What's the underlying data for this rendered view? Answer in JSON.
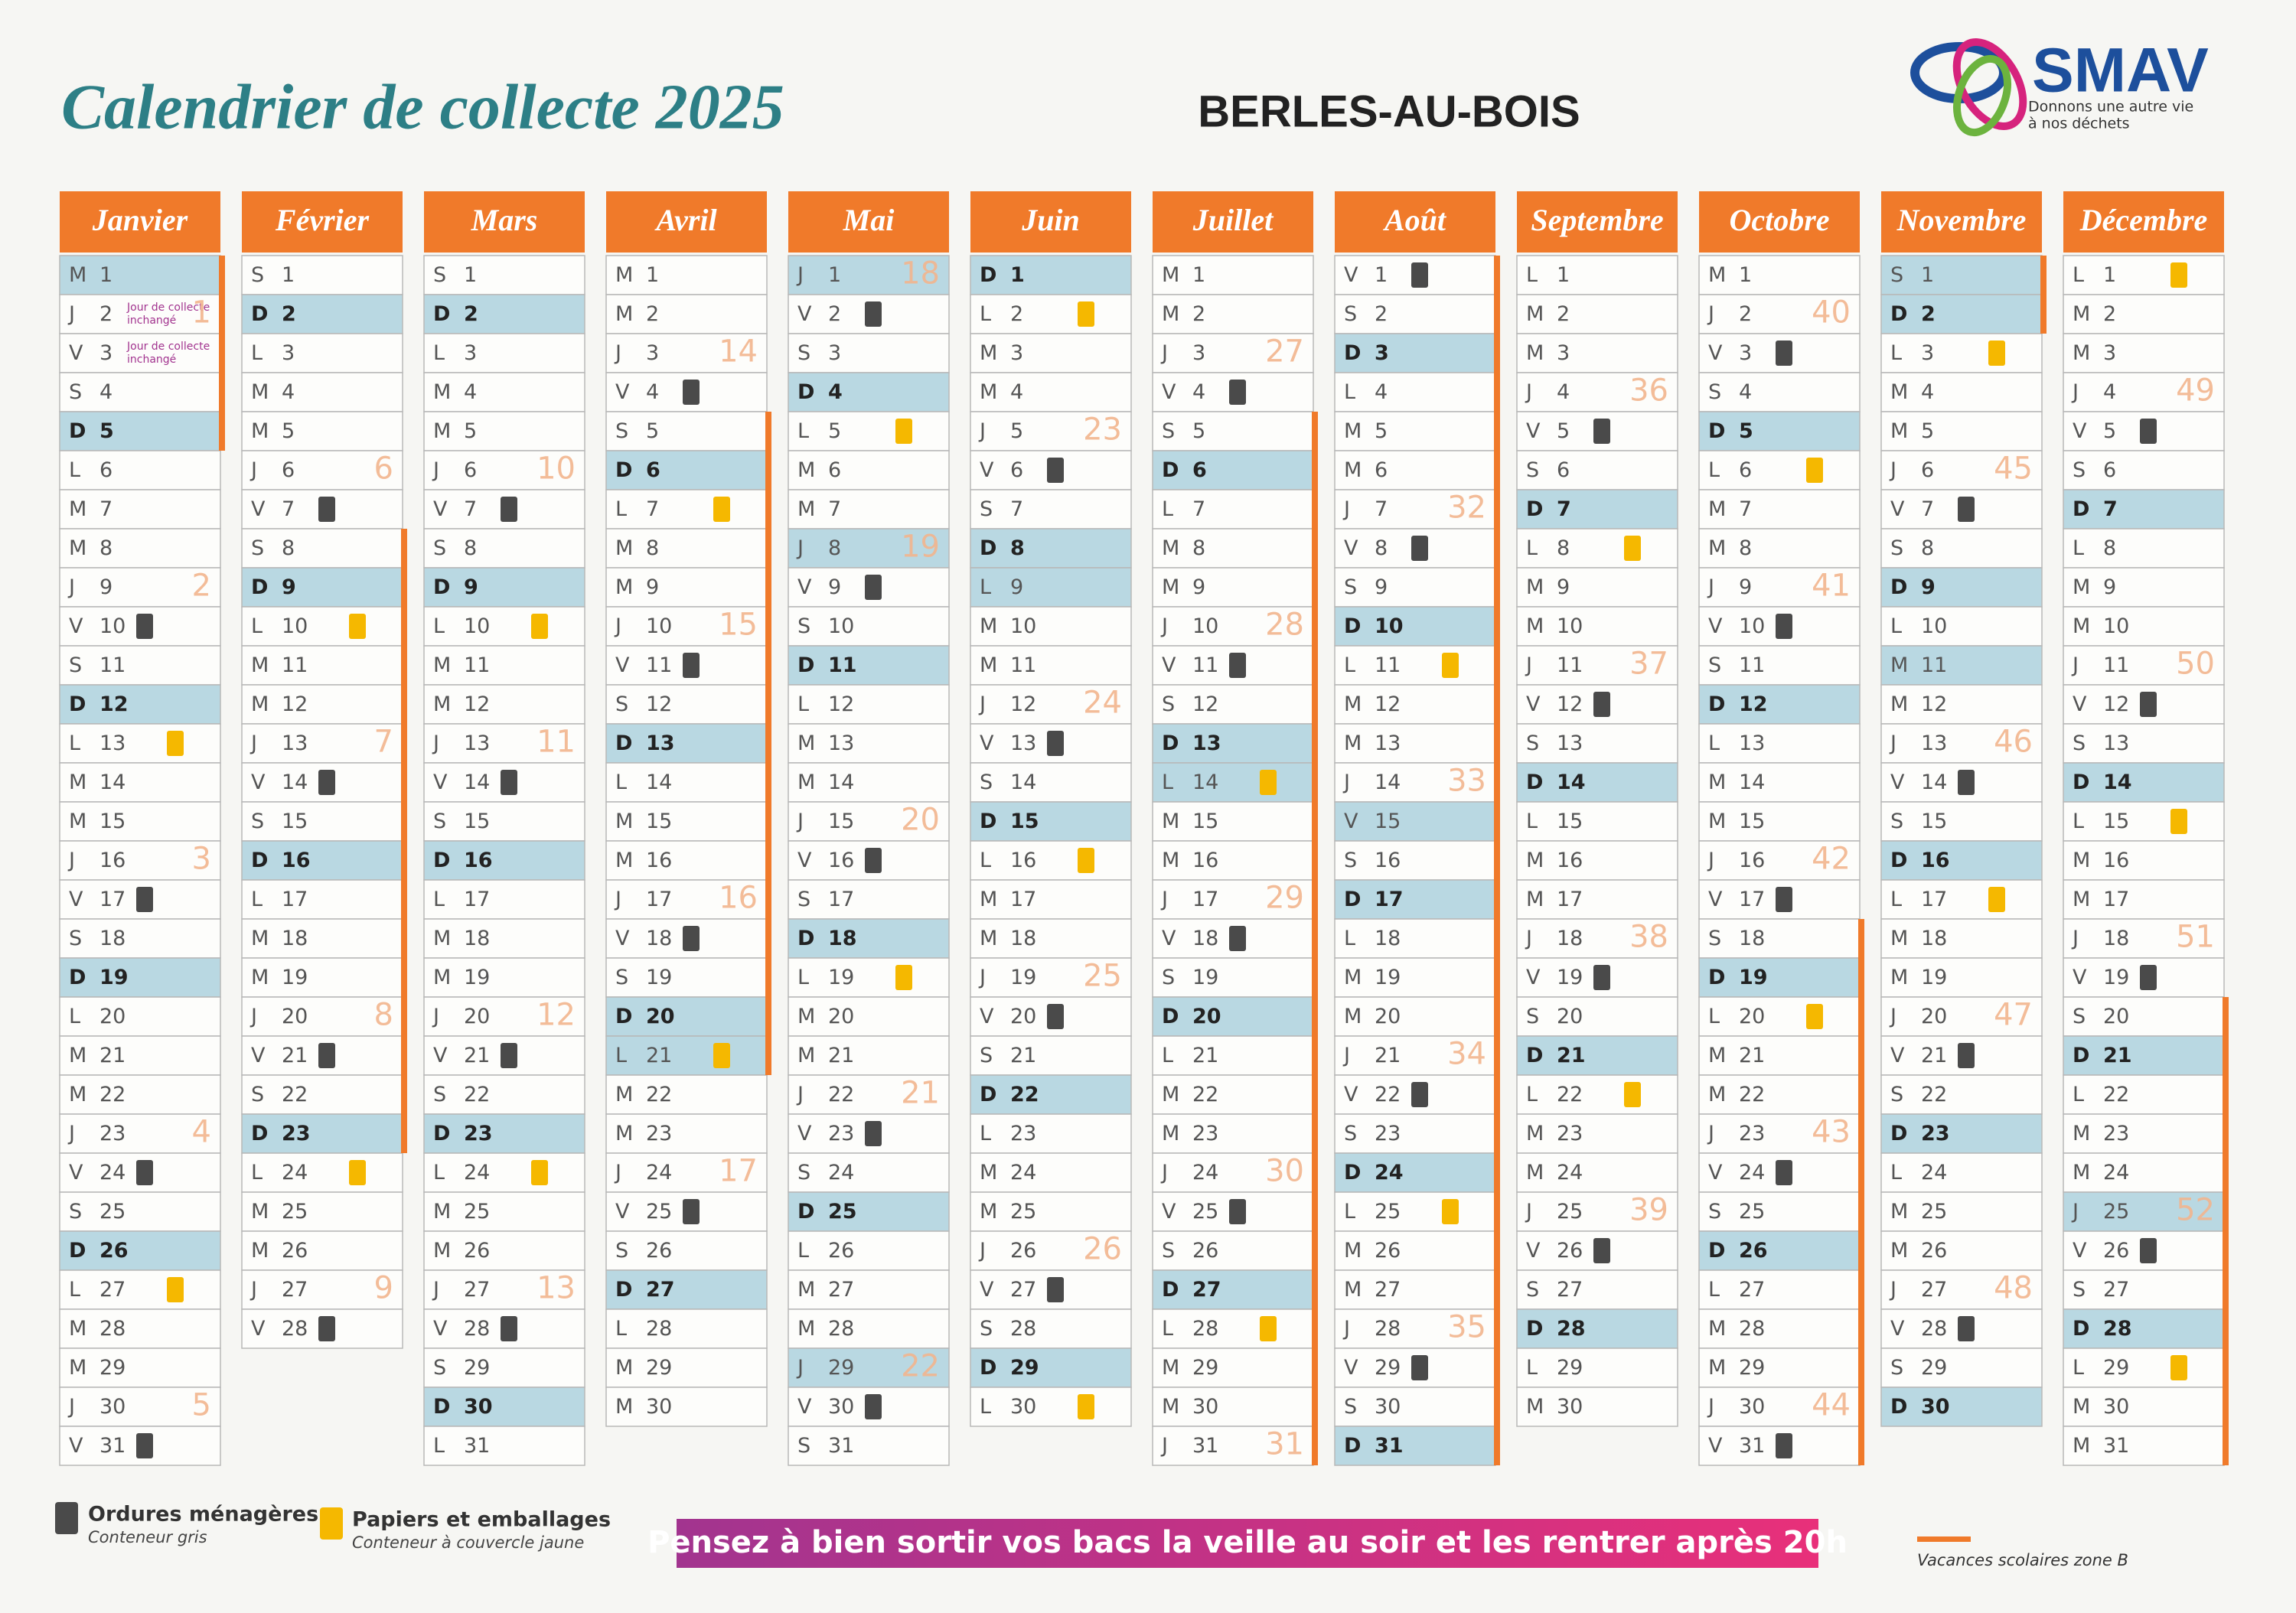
{
  "header": {
    "title": "Calendrier de collecte 2025",
    "town": "BERLES-AU-BOIS",
    "logo": "SMAV",
    "tagline": [
      "Donnons une autre vie",
      "à nos déchets"
    ]
  },
  "legend": {
    "gris": {
      "title": "Ordures ménagères",
      "subtitle": "Conteneur gris"
    },
    "jaune": {
      "title": "Papiers et emballages",
      "subtitle": "Conteneur à couvercle jaune"
    },
    "vacances": "Vacances scolaires zone B"
  },
  "banner": "Pensez à bien sortir vos bacs la veille au soir et les rentrer après 20h",
  "months": [
    {
      "name": "Janvier",
      "days": [
        "M",
        "J",
        "V",
        "S",
        "D",
        "L",
        "M",
        "M",
        "J",
        "V",
        "S",
        "D",
        "L",
        "M",
        "M",
        "J",
        "V",
        "S",
        "D",
        "L",
        "M",
        "M",
        "J",
        "V",
        "S",
        "D",
        "L",
        "M",
        "M",
        "J",
        "V"
      ],
      "dates": [
        1,
        2,
        3,
        4,
        5,
        6,
        7,
        8,
        9,
        10,
        11,
        12,
        13,
        14,
        15,
        16,
        17,
        18,
        19,
        20,
        21,
        22,
        23,
        24,
        25,
        26,
        27,
        28,
        29,
        30,
        31
      ],
      "sundays": [
        5,
        12,
        19,
        26
      ],
      "holidays": [
        1
      ],
      "gris": [
        10,
        17,
        24,
        31
      ],
      "jaune": [
        13,
        27
      ],
      "vacances": [
        1,
        5
      ],
      "weeks": [
        1,
        2,
        3,
        4,
        5
      ],
      "week_rows": [
        2,
        9,
        16,
        23,
        30
      ],
      "notes": [
        {
          "day": 2,
          "text": [
            "Jour de collecte",
            "inchangé"
          ]
        },
        {
          "day": 3,
          "text": [
            "Jour de collecte",
            "inchangé"
          ]
        }
      ]
    },
    {
      "name": "Février",
      "days": [
        "S",
        "D",
        "L",
        "M",
        "M",
        "J",
        "V",
        "S",
        "D",
        "L",
        "M",
        "M",
        "J",
        "V",
        "S",
        "D",
        "L",
        "M",
        "M",
        "J",
        "V",
        "S",
        "D",
        "L",
        "M",
        "M",
        "J",
        "V"
      ],
      "dates": [
        1,
        2,
        3,
        4,
        5,
        6,
        7,
        8,
        9,
        10,
        11,
        12,
        13,
        14,
        15,
        16,
        17,
        18,
        19,
        20,
        21,
        22,
        23,
        24,
        25,
        26,
        27,
        28
      ],
      "sundays": [
        2,
        9,
        16,
        23
      ],
      "holidays": [],
      "gris": [
        7,
        14,
        21,
        28
      ],
      "jaune": [
        10,
        24
      ],
      "vacances": [
        8,
        23
      ],
      "weeks": [
        6,
        7,
        8,
        9
      ],
      "week_rows": [
        6,
        13,
        20,
        27
      ],
      "notes": []
    },
    {
      "name": "Mars",
      "days": [
        "S",
        "D",
        "L",
        "M",
        "M",
        "J",
        "V",
        "S",
        "D",
        "L",
        "M",
        "M",
        "J",
        "V",
        "S",
        "D",
        "L",
        "M",
        "M",
        "J",
        "V",
        "S",
        "D",
        "L",
        "M",
        "M",
        "J",
        "V",
        "S",
        "D",
        "L"
      ],
      "dates": [
        1,
        2,
        3,
        4,
        5,
        6,
        7,
        8,
        9,
        10,
        11,
        12,
        13,
        14,
        15,
        16,
        17,
        18,
        19,
        20,
        21,
        22,
        23,
        24,
        25,
        26,
        27,
        28,
        29,
        30,
        31
      ],
      "sundays": [
        2,
        9,
        16,
        23,
        30
      ],
      "holidays": [],
      "gris": [
        7,
        14,
        21,
        28
      ],
      "jaune": [
        10,
        24
      ],
      "vacances": [],
      "weeks": [
        10,
        11,
        12,
        13
      ],
      "week_rows": [
        6,
        13,
        20,
        27
      ],
      "notes": []
    },
    {
      "name": "Avril",
      "days": [
        "M",
        "M",
        "J",
        "V",
        "S",
        "D",
        "L",
        "M",
        "M",
        "J",
        "V",
        "S",
        "D",
        "L",
        "M",
        "M",
        "J",
        "V",
        "S",
        "D",
        "L",
        "M",
        "M",
        "J",
        "V",
        "S",
        "D",
        "L",
        "M",
        "M"
      ],
      "dates": [
        1,
        2,
        3,
        4,
        5,
        6,
        7,
        8,
        9,
        10,
        11,
        12,
        13,
        14,
        15,
        16,
        17,
        18,
        19,
        20,
        21,
        22,
        23,
        24,
        25,
        26,
        27,
        28,
        29,
        30
      ],
      "sundays": [
        6,
        13,
        20,
        27
      ],
      "holidays": [
        21
      ],
      "gris": [
        4,
        11,
        18,
        25
      ],
      "jaune": [
        7,
        21
      ],
      "vacances": [
        5,
        21
      ],
      "weeks": [
        14,
        15,
        16,
        17
      ],
      "week_rows": [
        3,
        10,
        17,
        24
      ],
      "notes": []
    },
    {
      "name": "Mai",
      "days": [
        "J",
        "V",
        "S",
        "D",
        "L",
        "M",
        "M",
        "J",
        "V",
        "S",
        "D",
        "L",
        "M",
        "M",
        "J",
        "V",
        "S",
        "D",
        "L",
        "M",
        "M",
        "J",
        "V",
        "S",
        "D",
        "L",
        "M",
        "M",
        "J",
        "V",
        "S"
      ],
      "dates": [
        1,
        2,
        3,
        4,
        5,
        6,
        7,
        8,
        9,
        10,
        11,
        12,
        13,
        14,
        15,
        16,
        17,
        18,
        19,
        20,
        21,
        22,
        23,
        24,
        25,
        26,
        27,
        28,
        29,
        30,
        31
      ],
      "sundays": [
        4,
        11,
        18,
        25
      ],
      "holidays": [
        1,
        8,
        29
      ],
      "gris": [
        2,
        9,
        16,
        23,
        30
      ],
      "jaune": [
        5,
        19
      ],
      "vacances": [],
      "weeks": [
        18,
        19,
        20,
        21,
        22
      ],
      "week_rows": [
        1,
        8,
        15,
        22,
        29
      ],
      "notes": []
    },
    {
      "name": "Juin",
      "days": [
        "D",
        "L",
        "M",
        "M",
        "J",
        "V",
        "S",
        "D",
        "L",
        "M",
        "M",
        "J",
        "V",
        "S",
        "D",
        "L",
        "M",
        "M",
        "J",
        "V",
        "S",
        "D",
        "L",
        "M",
        "M",
        "J",
        "V",
        "S",
        "D",
        "L"
      ],
      "dates": [
        1,
        2,
        3,
        4,
        5,
        6,
        7,
        8,
        9,
        10,
        11,
        12,
        13,
        14,
        15,
        16,
        17,
        18,
        19,
        20,
        21,
        22,
        23,
        24,
        25,
        26,
        27,
        28,
        29,
        30
      ],
      "sundays": [
        1,
        8,
        15,
        22,
        29
      ],
      "holidays": [
        9
      ],
      "gris": [
        6,
        13,
        20,
        27
      ],
      "jaune": [
        2,
        16,
        30
      ],
      "vacances": [],
      "weeks": [
        23,
        24,
        25,
        26
      ],
      "week_rows": [
        5,
        12,
        19,
        26
      ],
      "notes": []
    },
    {
      "name": "Juillet",
      "days": [
        "M",
        "M",
        "J",
        "V",
        "S",
        "D",
        "L",
        "M",
        "M",
        "J",
        "V",
        "S",
        "D",
        "L",
        "M",
        "M",
        "J",
        "V",
        "S",
        "D",
        "L",
        "M",
        "M",
        "J",
        "V",
        "S",
        "D",
        "L",
        "M",
        "M",
        "J"
      ],
      "dates": [
        1,
        2,
        3,
        4,
        5,
        6,
        7,
        8,
        9,
        10,
        11,
        12,
        13,
        14,
        15,
        16,
        17,
        18,
        19,
        20,
        21,
        22,
        23,
        24,
        25,
        26,
        27,
        28,
        29,
        30,
        31
      ],
      "sundays": [
        6,
        13,
        20,
        27
      ],
      "holidays": [
        14
      ],
      "gris": [
        4,
        11,
        18,
        25
      ],
      "jaune": [
        14,
        28
      ],
      "vacances": [
        5,
        31
      ],
      "weeks": [
        27,
        28,
        29,
        30,
        31
      ],
      "week_rows": [
        3,
        10,
        17,
        24,
        31
      ],
      "notes": []
    },
    {
      "name": "Août",
      "days": [
        "V",
        "S",
        "D",
        "L",
        "M",
        "M",
        "J",
        "V",
        "S",
        "D",
        "L",
        "M",
        "M",
        "J",
        "V",
        "S",
        "D",
        "L",
        "M",
        "M",
        "J",
        "V",
        "S",
        "D",
        "L",
        "M",
        "M",
        "J",
        "V",
        "S",
        "D"
      ],
      "dates": [
        1,
        2,
        3,
        4,
        5,
        6,
        7,
        8,
        9,
        10,
        11,
        12,
        13,
        14,
        15,
        16,
        17,
        18,
        19,
        20,
        21,
        22,
        23,
        24,
        25,
        26,
        27,
        28,
        29,
        30,
        31
      ],
      "sundays": [
        3,
        10,
        17,
        24,
        31
      ],
      "holidays": [
        15
      ],
      "gris": [
        1,
        8,
        22,
        29
      ],
      "jaune": [
        11,
        25
      ],
      "vacances": [
        1,
        31
      ],
      "weeks": [
        32,
        33,
        34,
        35
      ],
      "week_rows": [
        7,
        14,
        21,
        28
      ],
      "notes": []
    },
    {
      "name": "Septembre",
      "days": [
        "L",
        "M",
        "M",
        "J",
        "V",
        "S",
        "D",
        "L",
        "M",
        "M",
        "J",
        "V",
        "S",
        "D",
        "L",
        "M",
        "M",
        "J",
        "V",
        "S",
        "D",
        "L",
        "M",
        "M",
        "J",
        "V",
        "S",
        "D",
        "L",
        "M"
      ],
      "dates": [
        1,
        2,
        3,
        4,
        5,
        6,
        7,
        8,
        9,
        10,
        11,
        12,
        13,
        14,
        15,
        16,
        17,
        18,
        19,
        20,
        21,
        22,
        23,
        24,
        25,
        26,
        27,
        28,
        29,
        30
      ],
      "sundays": [
        7,
        14,
        21,
        28
      ],
      "holidays": [],
      "gris": [
        5,
        12,
        19,
        26
      ],
      "jaune": [
        8,
        22
      ],
      "vacances": [],
      "weeks": [
        36,
        37,
        38,
        39
      ],
      "week_rows": [
        4,
        11,
        18,
        25
      ],
      "notes": []
    },
    {
      "name": "Octobre",
      "days": [
        "M",
        "J",
        "V",
        "S",
        "D",
        "L",
        "M",
        "M",
        "J",
        "V",
        "S",
        "D",
        "L",
        "M",
        "M",
        "J",
        "V",
        "S",
        "D",
        "L",
        "M",
        "M",
        "J",
        "V",
        "S",
        "D",
        "L",
        "M",
        "M",
        "J",
        "V"
      ],
      "dates": [
        1,
        2,
        3,
        4,
        5,
        6,
        7,
        8,
        9,
        10,
        11,
        12,
        13,
        14,
        15,
        16,
        17,
        18,
        19,
        20,
        21,
        22,
        23,
        24,
        25,
        26,
        27,
        28,
        29,
        30,
        31
      ],
      "sundays": [
        5,
        12,
        19,
        26
      ],
      "holidays": [],
      "gris": [
        3,
        10,
        17,
        24,
        31
      ],
      "jaune": [
        6,
        20
      ],
      "vacances": [
        18,
        31
      ],
      "weeks": [
        40,
        41,
        42,
        43,
        44
      ],
      "week_rows": [
        2,
        9,
        16,
        23,
        30
      ],
      "notes": []
    },
    {
      "name": "Novembre",
      "days": [
        "S",
        "D",
        "L",
        "M",
        "M",
        "J",
        "V",
        "S",
        "D",
        "L",
        "M",
        "M",
        "J",
        "V",
        "S",
        "D",
        "L",
        "M",
        "M",
        "J",
        "V",
        "S",
        "D",
        "L",
        "M",
        "M",
        "J",
        "V",
        "S",
        "D"
      ],
      "dates": [
        1,
        2,
        3,
        4,
        5,
        6,
        7,
        8,
        9,
        10,
        11,
        12,
        13,
        14,
        15,
        16,
        17,
        18,
        19,
        20,
        21,
        22,
        23,
        24,
        25,
        26,
        27,
        28,
        29,
        30
      ],
      "sundays": [
        2,
        9,
        16,
        23,
        30
      ],
      "holidays": [
        1,
        11
      ],
      "gris": [
        7,
        14,
        21,
        28
      ],
      "jaune": [
        3,
        17
      ],
      "vacances": [
        1,
        2
      ],
      "weeks": [
        45,
        46,
        47,
        48
      ],
      "week_rows": [
        6,
        13,
        20,
        27
      ],
      "notes": []
    },
    {
      "name": "Décembre",
      "days": [
        "L",
        "M",
        "M",
        "J",
        "V",
        "S",
        "D",
        "L",
        "M",
        "M",
        "J",
        "V",
        "S",
        "D",
        "L",
        "M",
        "M",
        "J",
        "V",
        "S",
        "D",
        "L",
        "M",
        "M",
        "J",
        "V",
        "S",
        "D",
        "L",
        "M",
        "M"
      ],
      "dates": [
        1,
        2,
        3,
        4,
        5,
        6,
        7,
        8,
        9,
        10,
        11,
        12,
        13,
        14,
        15,
        16,
        17,
        18,
        19,
        20,
        21,
        22,
        23,
        24,
        25,
        26,
        27,
        28,
        29,
        30,
        31
      ],
      "sundays": [
        7,
        14,
        21,
        28
      ],
      "holidays": [
        25
      ],
      "gris": [
        5,
        12,
        19,
        26
      ],
      "jaune": [
        1,
        15,
        29
      ],
      "vacances": [
        20,
        31
      ],
      "weeks": [
        49,
        50,
        51,
        52
      ],
      "week_rows": [
        4,
        11,
        18,
        25
      ],
      "notes": []
    }
  ]
}
